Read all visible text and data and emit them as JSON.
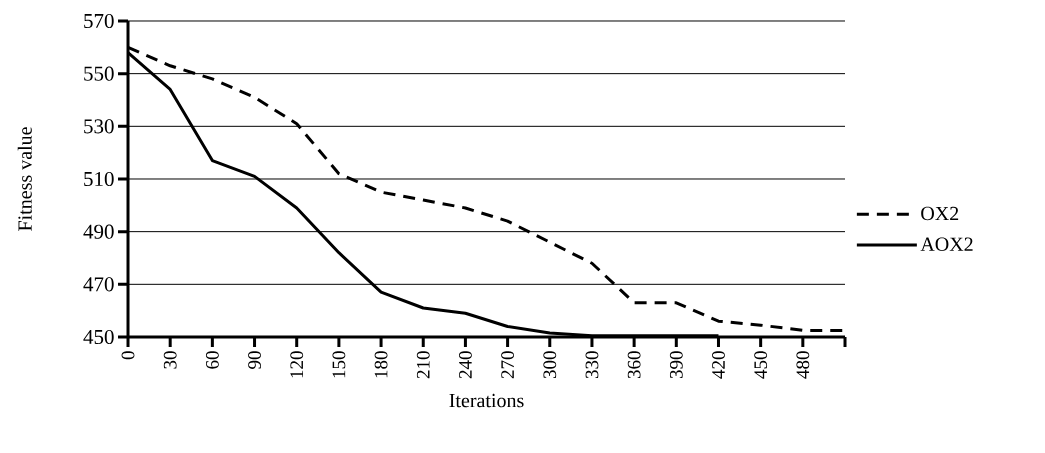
{
  "chart_data": {
    "type": "line",
    "xlabel": "Iterations",
    "ylabel": "Fitness value",
    "categories": [
      "0",
      "30",
      "60",
      "90",
      "120",
      "150",
      "180",
      "210",
      "240",
      "270",
      "300",
      "330",
      "360",
      "390",
      "420",
      "450",
      "480",
      null
    ],
    "series": [
      {
        "name": "OX2",
        "color": "#000000",
        "line_style": "dashed",
        "values": [
          560,
          553,
          548,
          541,
          531,
          512,
          505,
          502,
          499,
          494,
          486,
          478,
          463,
          463,
          456,
          454.5,
          452.5,
          452.5
        ]
      },
      {
        "name": "AOX2",
        "color": "#000000",
        "line_style": "solid",
        "values": [
          558,
          544,
          517,
          511,
          499,
          482,
          467,
          461,
          459,
          454,
          451.5,
          450.5,
          450.5,
          450.5,
          450.5,
          null,
          null,
          null
        ]
      }
    ],
    "ylim": [
      450,
      570
    ],
    "yticks": [
      450,
      470,
      490,
      510,
      530,
      550,
      570
    ],
    "grid": "y",
    "legend": "right",
    "marker": "none"
  }
}
